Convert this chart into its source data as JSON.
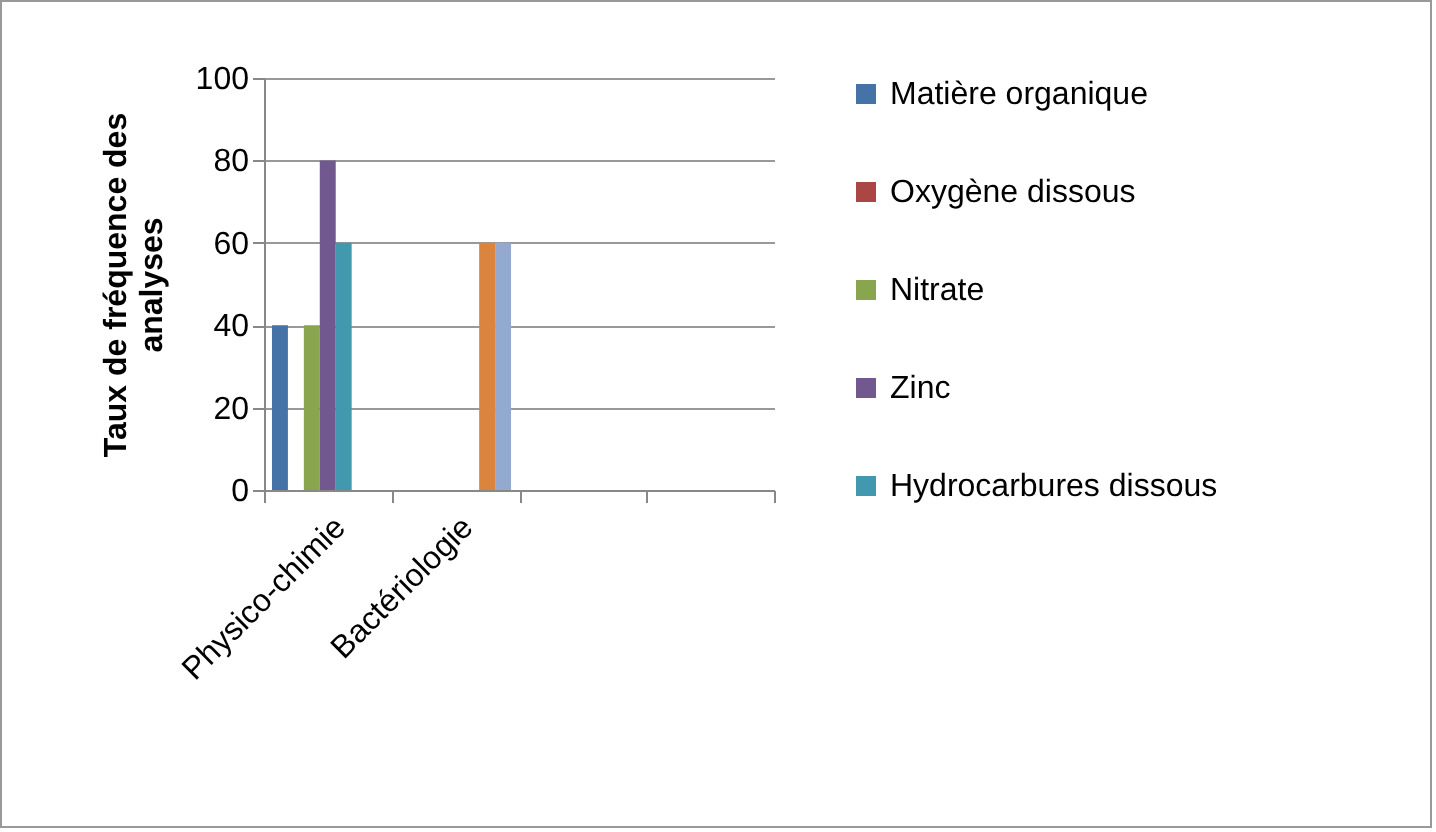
{
  "chart_data": {
    "type": "bar",
    "ylabel": "Taux de fréquence des analyses",
    "categories": [
      "Physico-chimie",
      "Bactériologie",
      null,
      null
    ],
    "series": [
      {
        "name": "Matière organique",
        "color": "#4572a7",
        "values": [
          40,
          0,
          null,
          null
        ]
      },
      {
        "name": "Oxygène dissous",
        "color": "#aa4643",
        "values": [
          0,
          0,
          null,
          null
        ]
      },
      {
        "name": "Nitrate",
        "color": "#89a54e",
        "values": [
          40,
          0,
          null,
          null
        ]
      },
      {
        "name": "Zinc",
        "color": "#71588f",
        "values": [
          80,
          0,
          null,
          null
        ]
      },
      {
        "name": "Hydrocarbures dissous",
        "color": "#4198af",
        "values": [
          60,
          0,
          null,
          null
        ]
      },
      {
        "color": "#db843d",
        "values": [
          0,
          60,
          null,
          null
        ]
      },
      {
        "color": "#93a9cf",
        "values": [
          0,
          60,
          null,
          null
        ]
      }
    ],
    "ylim": [
      0,
      100
    ],
    "yticks": [
      0,
      20,
      40,
      60,
      80,
      100
    ],
    "grid": "y",
    "legend": "right"
  }
}
